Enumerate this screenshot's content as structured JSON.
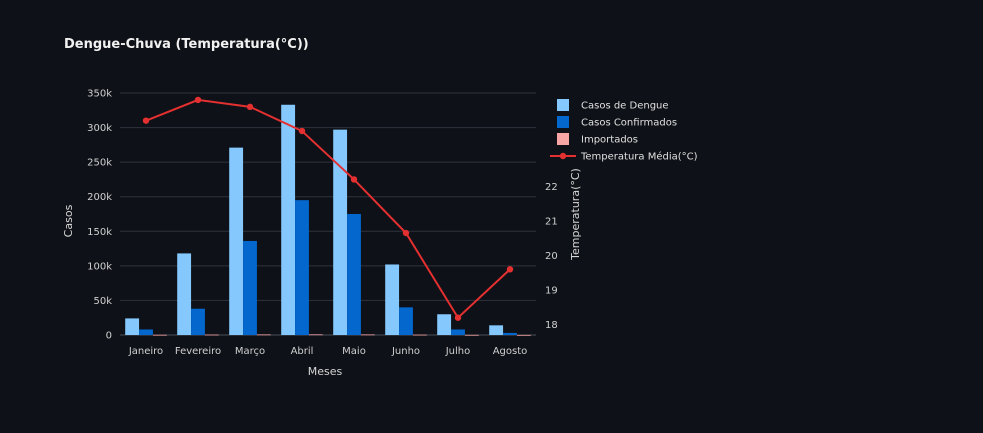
{
  "chart_data": {
    "type": "bar",
    "title": "Dengue-Chuva (Temperatura(°C))",
    "xlabel": "Meses",
    "ylabel": "Casos",
    "y2label": "Temperatura(°C)",
    "categories": [
      "Janeiro",
      "Fevereiro",
      "Março",
      "Abril",
      "Maio",
      "Junho",
      "Julho",
      "Agosto"
    ],
    "ylim": [
      0,
      350000
    ],
    "yticks": [
      0,
      50000,
      100000,
      150000,
      200000,
      250000,
      300000,
      350000
    ],
    "ytick_labels": [
      "0",
      "50k",
      "100k",
      "150k",
      "200k",
      "250k",
      "300k",
      "350k"
    ],
    "y2lim": [
      17.7,
      24.7
    ],
    "y2ticks": [
      18,
      19,
      20,
      21,
      22
    ],
    "y2tick_labels": [
      "18",
      "19",
      "20",
      "21",
      "22"
    ],
    "series": [
      {
        "name": "Casos de Dengue",
        "type": "bar",
        "axis": "y",
        "color": "#85c8fd",
        "values": [
          24000,
          118000,
          271000,
          333000,
          297000,
          102000,
          30000,
          14000
        ]
      },
      {
        "name": "Casos Confirmados",
        "type": "bar",
        "axis": "y",
        "color": "#0367cd",
        "values": [
          8000,
          38000,
          136000,
          195000,
          175000,
          40000,
          8000,
          3000
        ]
      },
      {
        "name": "Importados",
        "type": "bar",
        "axis": "y",
        "color": "#f8a5a5",
        "values": [
          300,
          600,
          800,
          900,
          800,
          500,
          200,
          100
        ]
      },
      {
        "name": "Temperatura Média(°C)",
        "type": "line",
        "axis": "y2",
        "color": "#e43030",
        "values": [
          23.9,
          24.5,
          24.3,
          23.6,
          22.2,
          20.65,
          18.2,
          19.6
        ]
      }
    ],
    "legend": "right",
    "grid": true
  }
}
